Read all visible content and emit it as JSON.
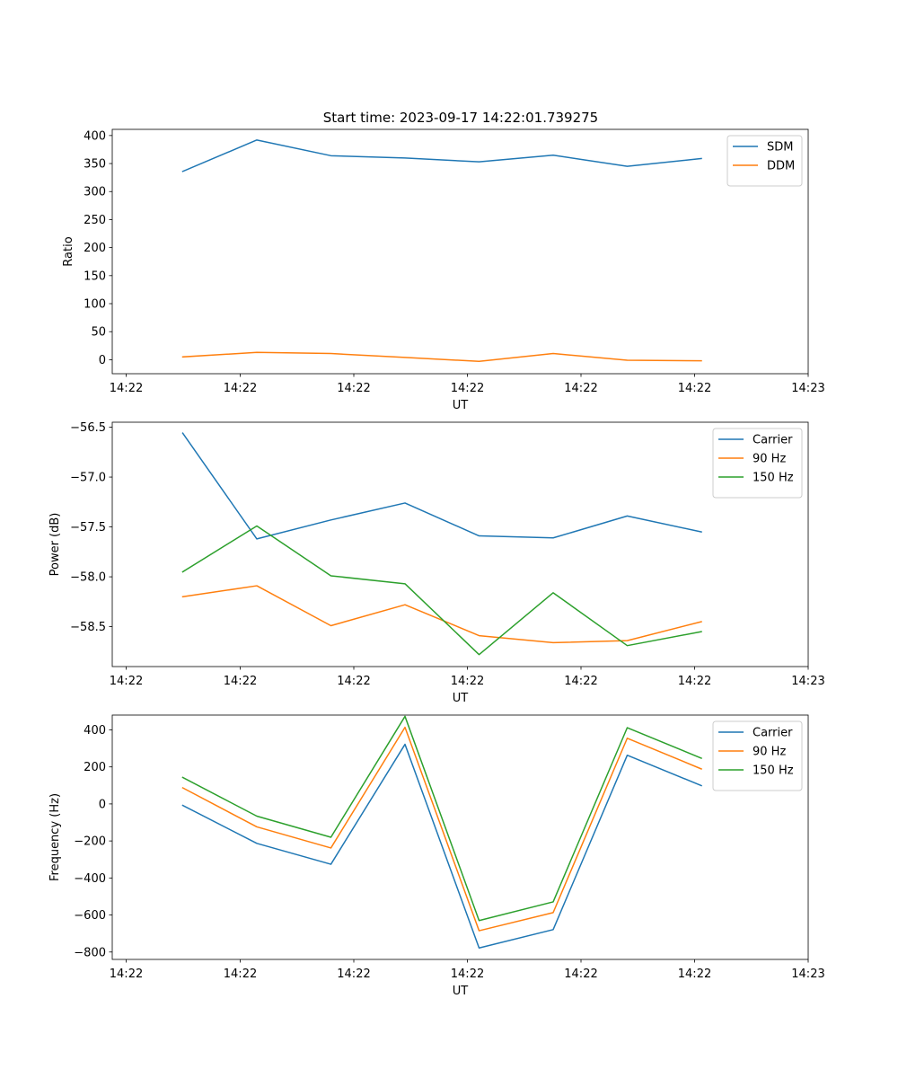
{
  "title": "Start time: 2023-09-17 14:22:01.739275",
  "colors": {
    "blue": "#1f77b4",
    "orange": "#ff7f0e",
    "green": "#2ca02c"
  },
  "chart_data": [
    {
      "type": "line",
      "ylabel": "Ratio",
      "xlabel": "UT",
      "x_tick_labels": [
        "14:22",
        "14:22",
        "14:22",
        "14:22",
        "14:22",
        "14:22",
        "14:23"
      ],
      "ylim": [
        -25,
        411
      ],
      "yticks": [
        0,
        50,
        100,
        150,
        200,
        250,
        300,
        350,
        400
      ],
      "legend_position": "upper right",
      "series": [
        {
          "name": "SDM",
          "color": "#1f77b4",
          "values": [
            336,
            392,
            364,
            360,
            353,
            365,
            345,
            359
          ]
        },
        {
          "name": "DDM",
          "color": "#ff7f0e",
          "values": [
            5,
            13,
            11,
            4,
            -3,
            11,
            -1,
            -2
          ]
        }
      ]
    },
    {
      "type": "line",
      "ylabel": "Power (dB)",
      "xlabel": "UT",
      "x_tick_labels": [
        "14:22",
        "14:22",
        "14:22",
        "14:22",
        "14:22",
        "14:22",
        "14:23"
      ],
      "ylim": [
        -58.9,
        -56.45
      ],
      "yticks": [
        -56.5,
        -57.0,
        -57.5,
        -58.0,
        -58.5
      ],
      "ytick_labels": [
        "−56.5",
        "−57.0",
        "−57.5",
        "−58.0",
        "−58.5"
      ],
      "legend_position": "upper right",
      "series": [
        {
          "name": "Carrier",
          "color": "#1f77b4",
          "values": [
            -56.56,
            -57.62,
            -57.43,
            -57.26,
            -57.59,
            -57.61,
            -57.39,
            -57.55
          ]
        },
        {
          "name": "90 Hz",
          "color": "#ff7f0e",
          "values": [
            -58.2,
            -58.09,
            -58.49,
            -58.28,
            -58.59,
            -58.66,
            -58.64,
            -58.45
          ]
        },
        {
          "name": "150 Hz",
          "color": "#2ca02c",
          "values": [
            -57.95,
            -57.49,
            -57.99,
            -58.07,
            -58.78,
            -58.16,
            -58.69,
            -58.55
          ]
        }
      ]
    },
    {
      "type": "line",
      "ylabel": "Frequency (Hz)",
      "xlabel": "UT",
      "x_tick_labels": [
        "14:22",
        "14:22",
        "14:22",
        "14:22",
        "14:22",
        "14:22",
        "14:23"
      ],
      "ylim": [
        -840,
        480
      ],
      "yticks": [
        -800,
        -600,
        -400,
        -200,
        0,
        200,
        400
      ],
      "ytick_labels": [
        "−800",
        "−600",
        "−400",
        "−200",
        "0",
        "200",
        "400"
      ],
      "legend_position": "upper right",
      "series": [
        {
          "name": "Carrier",
          "color": "#1f77b4",
          "values": [
            -8,
            -213,
            -326,
            322,
            -778,
            -679,
            263,
            99
          ]
        },
        {
          "name": "90 Hz",
          "color": "#ff7f0e",
          "values": [
            87,
            -124,
            -238,
            414,
            -685,
            -587,
            355,
            189
          ]
        },
        {
          "name": "150 Hz",
          "color": "#2ca02c",
          "values": [
            143,
            -66,
            -180,
            473,
            -630,
            -529,
            412,
            247
          ]
        }
      ]
    }
  ]
}
